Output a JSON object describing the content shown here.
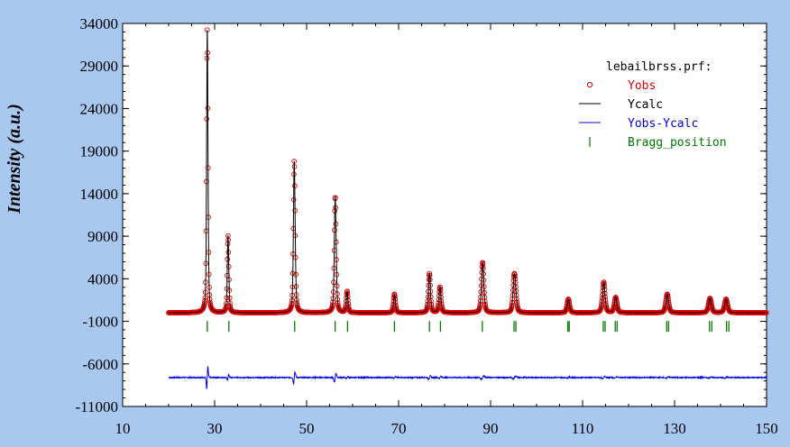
{
  "chart_data": {
    "type": "line",
    "title": "",
    "xlabel": "",
    "ylabel": "Intensity (a.u.)",
    "xlim": [
      10,
      150
    ],
    "ylim": [
      -11000,
      34000
    ],
    "x_ticks": [
      "10",
      "30",
      "50",
      "70",
      "90",
      "110",
      "130",
      "150"
    ],
    "x_tick_values": [
      10,
      30,
      50,
      70,
      90,
      110,
      130,
      150
    ],
    "y_ticks": [
      "34000",
      "29000",
      "24000",
      "19000",
      "14000",
      "9000",
      "4000",
      "-1000",
      "-6000",
      "-11000"
    ],
    "y_tick_values": [
      34000,
      29000,
      24000,
      19000,
      14000,
      9000,
      4000,
      -1000,
      -6000,
      -11000
    ],
    "grid": false,
    "legend_placement": "top-right",
    "legend_title": "lebailbrss.prf:",
    "x_range_measured": [
      20,
      150
    ],
    "baseline_intensity": 0,
    "difference_offset": -7600,
    "bragg_marker_y": -1600,
    "peaks": [
      {
        "x": 28.4,
        "y": 32500
      },
      {
        "x": 28.6,
        "y": 1800
      },
      {
        "x": 32.9,
        "y": 8500
      },
      {
        "x": 33.1,
        "y": 1200
      },
      {
        "x": 47.3,
        "y": 16500
      },
      {
        "x": 47.5,
        "y": 2500
      },
      {
        "x": 56.2,
        "y": 12500
      },
      {
        "x": 56.4,
        "y": 2000
      },
      {
        "x": 58.8,
        "y": 2500
      },
      {
        "x": 69.1,
        "y": 2200
      },
      {
        "x": 76.7,
        "y": 4600
      },
      {
        "x": 79.0,
        "y": 3000
      },
      {
        "x": 88.2,
        "y": 4000
      },
      {
        "x": 88.4,
        "y": 2500
      },
      {
        "x": 95.1,
        "y": 3500
      },
      {
        "x": 95.4,
        "y": 2000
      },
      {
        "x": 106.9,
        "y": 1600
      },
      {
        "x": 114.6,
        "y": 3600
      },
      {
        "x": 117.2,
        "y": 1800
      },
      {
        "x": 128.4,
        "y": 2200
      },
      {
        "x": 137.7,
        "y": 1700
      },
      {
        "x": 141.2,
        "y": 1600
      }
    ],
    "bragg_positions": [
      28.4,
      33.1,
      47.4,
      56.2,
      58.9,
      69.1,
      76.7,
      79.1,
      88.2,
      95.1,
      95.5,
      106.8,
      107.1,
      114.5,
      114.9,
      117.1,
      117.5,
      128.3,
      128.7,
      137.6,
      138.1,
      141.3,
      141.8
    ],
    "series": [
      {
        "name": "Yobs",
        "style": "circles",
        "color": "#e00000"
      },
      {
        "name": "Ycalc",
        "style": "line",
        "color": "#000000"
      },
      {
        "name": "Yobs-Ycalc",
        "style": "line",
        "color": "#0000e0"
      },
      {
        "name": "Bragg_position",
        "style": "ticks",
        "color": "#007a00"
      }
    ]
  }
}
